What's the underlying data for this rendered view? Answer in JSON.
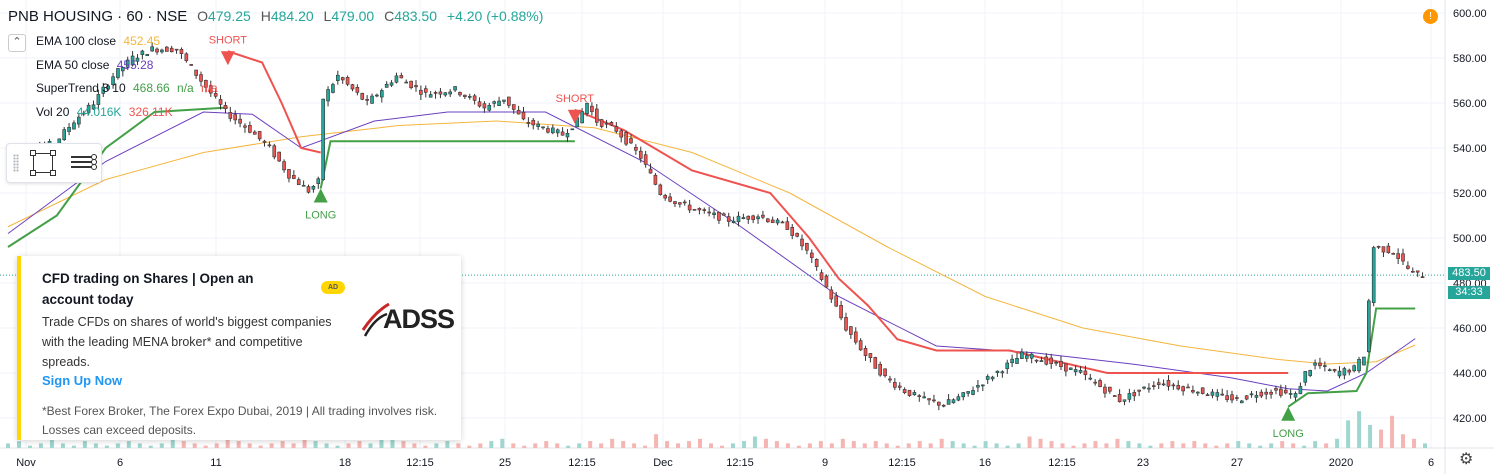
{
  "header": {
    "symbol": "PNB HOUSING · 60 · NSE",
    "open_label": "O",
    "open": "479.25",
    "high_label": "H",
    "high": "484.20",
    "low_label": "L",
    "low": "479.00",
    "close_label": "C",
    "close": "483.50",
    "change": "+4.20 (+0.88%)"
  },
  "indicators": {
    "collapse_icon": "chevron-up-icon",
    "ema100": {
      "name": "EMA 100 close",
      "value": "452.45",
      "color": "#f4b63e"
    },
    "ema50": {
      "name": "EMA 50 close",
      "value": "455.28",
      "color": "#6a3fbf"
    },
    "supertrend": {
      "name": "SuperTrend 3 10",
      "value": "468.66",
      "v2": "n/a",
      "v3": "n/a",
      "color": "#43a047"
    },
    "volume": {
      "name": "Vol 20",
      "value": "44.016K",
      "value2": "326.11K",
      "color": "#26a69a",
      "color2": "#ef5350"
    }
  },
  "ad": {
    "title": "CFD trading on Shares | Open an account today",
    "badge": "AD",
    "logo_text": "ADSS",
    "body": "Trade CFDs on shares of world's biggest companies with the leading MENA broker* and competitive spreads.",
    "cta": "Sign Up Now",
    "disclaimer": "*Best Forex Broker, The Forex Expo Dubai, 2019 | All trading involves risk. Losses can exceed deposits."
  },
  "price_axis": {
    "ticks": [
      "600.00",
      "580.00",
      "560.00",
      "540.00",
      "520.00",
      "500.00",
      "480.00",
      "460.00",
      "440.00",
      "420.00"
    ],
    "last_price": "483.50",
    "countdown": "34:33",
    "alert_icon": "alert-icon",
    "settings_icon": "gear-icon"
  },
  "time_axis": {
    "ticks": [
      "Nov",
      "6",
      "11",
      "18",
      "12:15",
      "25",
      "12:15",
      "Dec",
      "12:15",
      "9",
      "12:15",
      "16",
      "12:15",
      "23",
      "27",
      "2020",
      "6"
    ]
  },
  "chart_data": {
    "type": "candlestick",
    "title": "PNB HOUSING · 60 · NSE",
    "ylim": [
      412,
      604
    ],
    "x_ticks": [
      "Nov",
      "6",
      "11",
      "18",
      "12:15",
      "25",
      "12:15",
      "Dec",
      "12:15",
      "9",
      "12:15",
      "16",
      "12:15",
      "23",
      "27",
      "2020",
      "6"
    ],
    "price_path": [
      [
        0,
        533
      ],
      [
        6,
        540
      ],
      [
        10,
        542
      ],
      [
        14,
        552
      ],
      [
        18,
        560
      ],
      [
        22,
        572
      ],
      [
        26,
        580
      ],
      [
        30,
        584
      ],
      [
        35,
        584
      ],
      [
        40,
        570
      ],
      [
        45,
        556
      ],
      [
        50,
        548
      ],
      [
        54,
        540
      ],
      [
        58,
        528
      ],
      [
        62,
        521
      ],
      [
        64,
        525
      ],
      [
        65,
        562
      ],
      [
        68,
        572
      ],
      [
        74,
        560
      ],
      [
        80,
        572
      ],
      [
        86,
        564
      ],
      [
        92,
        566
      ],
      [
        98,
        558
      ],
      [
        102,
        562
      ],
      [
        106,
        552
      ],
      [
        110,
        549
      ],
      [
        114,
        546
      ],
      [
        117,
        552
      ],
      [
        119,
        560
      ],
      [
        121,
        552
      ],
      [
        125,
        548
      ],
      [
        130,
        536
      ],
      [
        134,
        520
      ],
      [
        138,
        515
      ],
      [
        142,
        512
      ],
      [
        148,
        508
      ],
      [
        154,
        510
      ],
      [
        160,
        505
      ],
      [
        164,
        494
      ],
      [
        168,
        478
      ],
      [
        172,
        460
      ],
      [
        176,
        448
      ],
      [
        180,
        438
      ],
      [
        184,
        432
      ],
      [
        188,
        428
      ],
      [
        192,
        426
      ],
      [
        196,
        430
      ],
      [
        200,
        436
      ],
      [
        204,
        442
      ],
      [
        208,
        448
      ],
      [
        212,
        446
      ],
      [
        216,
        443
      ],
      [
        220,
        440
      ],
      [
        224,
        434
      ],
      [
        228,
        428
      ],
      [
        232,
        432
      ],
      [
        236,
        436
      ],
      [
        240,
        434
      ],
      [
        244,
        432
      ],
      [
        248,
        430
      ],
      [
        252,
        428
      ],
      [
        256,
        431
      ],
      [
        260,
        432
      ],
      [
        264,
        430
      ],
      [
        266,
        440
      ],
      [
        268,
        444
      ],
      [
        272,
        440
      ],
      [
        276,
        442
      ],
      [
        278,
        448
      ],
      [
        280,
        496
      ],
      [
        284,
        494
      ],
      [
        288,
        484
      ],
      [
        290,
        483.5
      ]
    ],
    "volume_bars": [
      2,
      3,
      1,
      2,
      4,
      2,
      1,
      3,
      2,
      1,
      2,
      3,
      2,
      1,
      2,
      4,
      3,
      2,
      1,
      2,
      6,
      3,
      2,
      1,
      2,
      3,
      2,
      4,
      3,
      2,
      1,
      2,
      3,
      2,
      5,
      6,
      3,
      2,
      1,
      2,
      3,
      2,
      1,
      2,
      3,
      4,
      2,
      1,
      2,
      3,
      2,
      1,
      2,
      3,
      2,
      4,
      3,
      2,
      1,
      6,
      3,
      2,
      3,
      4,
      2,
      1,
      2,
      3,
      5,
      4,
      3,
      2,
      1,
      2,
      3,
      2,
      4,
      3,
      2,
      3,
      2,
      1,
      2,
      3,
      2,
      4,
      3,
      2,
      1,
      3,
      2,
      1,
      2,
      5,
      4,
      3,
      2,
      1,
      2,
      3,
      2,
      4,
      3,
      2,
      1,
      2,
      3,
      2,
      3,
      2,
      1,
      2,
      3,
      2,
      1,
      2,
      3,
      2,
      1,
      3,
      2,
      4,
      12,
      16,
      10,
      8,
      14,
      6,
      4,
      2
    ],
    "ema100": [
      [
        0,
        505
      ],
      [
        20,
        526
      ],
      [
        40,
        538
      ],
      [
        60,
        545
      ],
      [
        80,
        550
      ],
      [
        100,
        552
      ],
      [
        120,
        549
      ],
      [
        140,
        538
      ],
      [
        160,
        520
      ],
      [
        180,
        496
      ],
      [
        200,
        474
      ],
      [
        220,
        460
      ],
      [
        240,
        452
      ],
      [
        260,
        446
      ],
      [
        270,
        444
      ],
      [
        280,
        445
      ],
      [
        288,
        452.45
      ]
    ],
    "ema50": [
      [
        0,
        502
      ],
      [
        20,
        534
      ],
      [
        40,
        556
      ],
      [
        50,
        555
      ],
      [
        60,
        540
      ],
      [
        75,
        552
      ],
      [
        90,
        556
      ],
      [
        110,
        556
      ],
      [
        130,
        534
      ],
      [
        150,
        505
      ],
      [
        170,
        474
      ],
      [
        190,
        452
      ],
      [
        210,
        449
      ],
      [
        230,
        444
      ],
      [
        250,
        438
      ],
      [
        262,
        433
      ],
      [
        270,
        432
      ],
      [
        278,
        440
      ],
      [
        288,
        455.28
      ]
    ],
    "supertrend_segments": [
      {
        "trend": "up",
        "points": [
          [
            0,
            496
          ],
          [
            10,
            510
          ],
          [
            20,
            540
          ],
          [
            30,
            556
          ],
          [
            45,
            558
          ]
        ]
      },
      {
        "trend": "down",
        "points": [
          [
            45,
            583
          ],
          [
            52,
            578
          ],
          [
            56,
            560
          ],
          [
            60,
            540
          ],
          [
            64,
            538
          ]
        ]
      },
      {
        "trend": "up",
        "points": [
          [
            64,
            522
          ],
          [
            66,
            543
          ],
          [
            72,
            543
          ],
          [
            90,
            543
          ],
          [
            116,
            543
          ]
        ]
      },
      {
        "trend": "down",
        "points": [
          [
            116,
            557
          ],
          [
            126,
            548
          ],
          [
            140,
            530
          ],
          [
            156,
            520
          ],
          [
            164,
            500
          ],
          [
            170,
            482
          ],
          [
            176,
            470
          ],
          [
            182,
            455
          ],
          [
            190,
            450
          ],
          [
            205,
            450
          ],
          [
            215,
            445
          ],
          [
            225,
            440
          ],
          [
            245,
            440
          ],
          [
            262,
            440
          ]
        ]
      },
      {
        "trend": "up",
        "points": [
          [
            262,
            425
          ],
          [
            266,
            431
          ],
          [
            276,
            432
          ],
          [
            278,
            440
          ],
          [
            280,
            468.66
          ],
          [
            288,
            468.66
          ]
        ]
      }
    ],
    "signals": [
      {
        "type": "SHORT",
        "x": 45,
        "price": 583
      },
      {
        "type": "LONG",
        "x": 64,
        "price": 522
      },
      {
        "type": "SHORT",
        "x": 116,
        "price": 557
      },
      {
        "type": "LONG",
        "x": 262,
        "price": 425
      }
    ]
  }
}
